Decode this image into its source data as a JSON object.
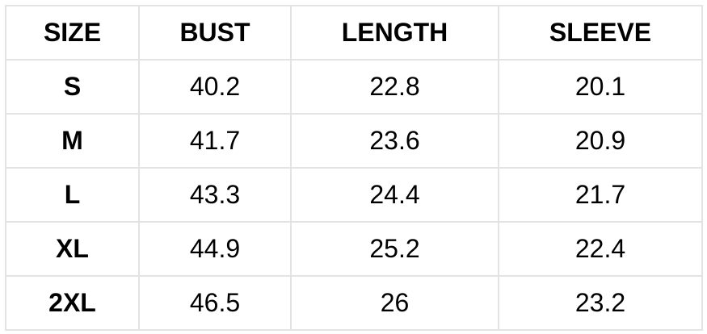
{
  "table": {
    "header": [
      "SIZE",
      "BUST",
      "LENGTH",
      "SLEEVE"
    ],
    "rows": [
      [
        "S",
        "40.2",
        "22.8",
        "20.1"
      ],
      [
        "M",
        "41.7",
        "23.6",
        "20.9"
      ],
      [
        "L",
        "43.3",
        "24.4",
        "21.7"
      ],
      [
        "XL",
        "44.9",
        "25.2",
        "22.4"
      ],
      [
        "2XL",
        "46.5",
        "26",
        "23.2"
      ]
    ]
  }
}
